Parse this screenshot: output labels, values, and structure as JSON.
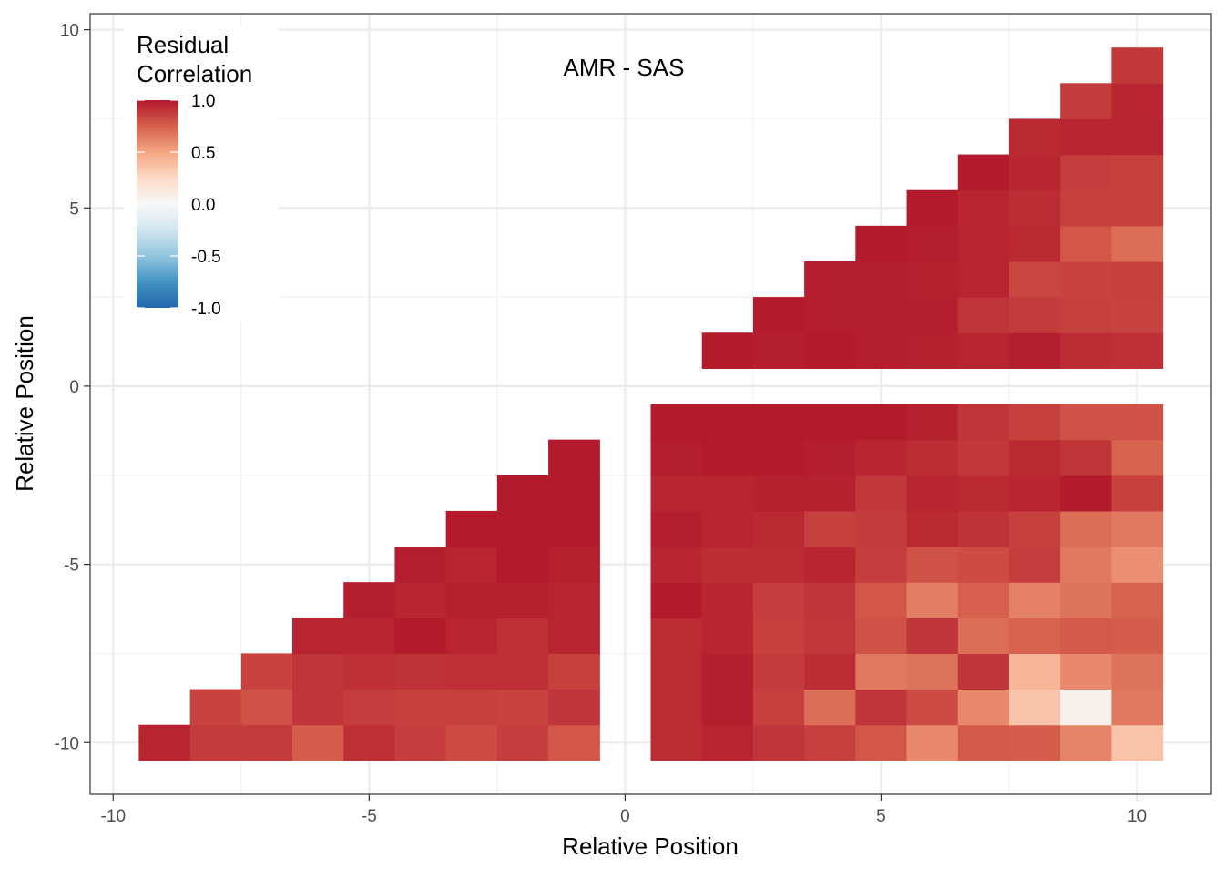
{
  "chart_data": {
    "type": "heatmap",
    "title": "",
    "annotation": "AMR - SAS",
    "xlabel": "Relative Position",
    "ylabel": "Relative Position",
    "xlim": [
      -10.45,
      11.45
    ],
    "ylim": [
      -11.45,
      10.45
    ],
    "x_ticks": [
      -10,
      -5,
      0,
      5,
      10
    ],
    "x_tick_labels": [
      "-10",
      "-5",
      "0",
      "5",
      "10"
    ],
    "y_ticks": [
      -10,
      -5,
      0,
      5,
      10
    ],
    "y_tick_labels": [
      "-10",
      "-5",
      "0",
      "5",
      "10"
    ],
    "grid": true,
    "legend": {
      "title": [
        "Residual",
        "Correlation"
      ],
      "placement": "top-left",
      "range": [
        -1.0,
        1.0
      ],
      "tick_values": [
        1.0,
        0.5,
        0.0,
        -0.5,
        -1.0
      ],
      "tick_labels": [
        "1.0",
        "0.5",
        "0.0",
        "-0.5",
        "-1.0"
      ],
      "colors": [
        "#2166AC",
        "#4393C3",
        "#92C5DE",
        "#D1E5F0",
        "#F7F7F7",
        "#FDDBC7",
        "#F4A582",
        "#D6604D",
        "#B2182B"
      ]
    },
    "upper_block": {
      "x": [
        2,
        3,
        4,
        5,
        6,
        7,
        8,
        9,
        10
      ],
      "y": [
        1,
        2,
        3,
        4,
        5,
        6,
        7,
        8,
        9
      ],
      "values": [
        [
          0.99,
          0.98,
          0.99,
          0.98,
          0.97,
          0.96,
          0.98,
          0.93,
          0.92
        ],
        [
          null,
          0.99,
          0.98,
          0.98,
          0.98,
          0.9,
          0.88,
          0.86,
          0.85
        ],
        [
          null,
          null,
          0.98,
          0.98,
          0.97,
          0.96,
          0.84,
          0.85,
          0.86
        ],
        [
          null,
          null,
          null,
          0.99,
          0.98,
          0.96,
          0.94,
          0.78,
          0.7
        ],
        [
          null,
          null,
          null,
          null,
          0.99,
          0.95,
          0.93,
          0.86,
          0.86
        ],
        [
          null,
          null,
          null,
          null,
          null,
          0.99,
          0.95,
          0.87,
          0.86
        ],
        [
          null,
          null,
          null,
          null,
          null,
          null,
          0.94,
          0.96,
          0.96
        ],
        [
          null,
          null,
          null,
          null,
          null,
          null,
          null,
          0.88,
          0.95
        ],
        [
          null,
          null,
          null,
          null,
          null,
          null,
          null,
          null,
          0.89
        ]
      ]
    },
    "lower_left_block": {
      "x": [
        -9,
        -8,
        -7,
        -6,
        -5,
        -4,
        -3,
        -2,
        -1
      ],
      "y": [
        -10,
        -9,
        -8,
        -7,
        -6,
        -5,
        -4,
        -3,
        -2
      ],
      "values": [
        [
          0.96,
          0.88,
          0.88,
          0.76,
          0.92,
          0.87,
          0.82,
          0.87,
          0.78
        ],
        [
          null,
          0.85,
          0.8,
          0.9,
          0.87,
          0.86,
          0.86,
          0.85,
          0.9
        ],
        [
          null,
          null,
          0.85,
          0.9,
          0.92,
          0.91,
          0.92,
          0.92,
          0.86
        ],
        [
          null,
          null,
          null,
          0.96,
          0.96,
          0.99,
          0.96,
          0.92,
          0.96
        ],
        [
          null,
          null,
          null,
          null,
          0.98,
          0.95,
          0.97,
          0.97,
          0.96
        ],
        [
          null,
          null,
          null,
          null,
          null,
          0.98,
          0.96,
          0.99,
          0.97
        ],
        [
          null,
          null,
          null,
          null,
          null,
          null,
          0.99,
          0.99,
          0.99
        ],
        [
          null,
          null,
          null,
          null,
          null,
          null,
          null,
          0.99,
          0.99
        ],
        [
          null,
          null,
          null,
          null,
          null,
          null,
          null,
          null,
          0.99
        ]
      ]
    },
    "lower_right_block": {
      "x": [
        1,
        2,
        3,
        4,
        5,
        6,
        7,
        8,
        9,
        10
      ],
      "y": [
        -10,
        -9,
        -8,
        -7,
        -6,
        -5,
        -4,
        -3,
        -2,
        -1
      ],
      "values": [
        [
          0.93,
          0.96,
          0.9,
          0.86,
          0.78,
          0.6,
          0.77,
          0.76,
          0.62,
          0.36
        ],
        [
          0.93,
          0.98,
          0.86,
          0.7,
          0.9,
          0.82,
          0.6,
          0.36,
          0.06,
          0.66
        ],
        [
          0.93,
          0.98,
          0.88,
          0.93,
          0.66,
          0.68,
          0.9,
          0.42,
          0.6,
          0.68
        ],
        [
          0.93,
          0.96,
          0.86,
          0.89,
          0.8,
          0.9,
          0.7,
          0.74,
          0.77,
          0.76
        ],
        [
          0.99,
          0.95,
          0.87,
          0.9,
          0.78,
          0.64,
          0.75,
          0.63,
          0.68,
          0.74
        ],
        [
          0.95,
          0.93,
          0.93,
          0.95,
          0.87,
          0.8,
          0.82,
          0.87,
          0.66,
          0.58
        ],
        [
          0.98,
          0.96,
          0.94,
          0.86,
          0.88,
          0.94,
          0.91,
          0.86,
          0.7,
          0.66
        ],
        [
          0.95,
          0.96,
          0.97,
          0.97,
          0.89,
          0.96,
          0.94,
          0.95,
          0.99,
          0.86
        ],
        [
          0.98,
          0.99,
          0.99,
          0.98,
          0.95,
          0.93,
          0.89,
          0.94,
          0.9,
          0.74
        ],
        [
          0.99,
          0.99,
          0.99,
          0.99,
          0.99,
          0.97,
          0.9,
          0.86,
          0.8,
          0.8
        ]
      ]
    }
  }
}
